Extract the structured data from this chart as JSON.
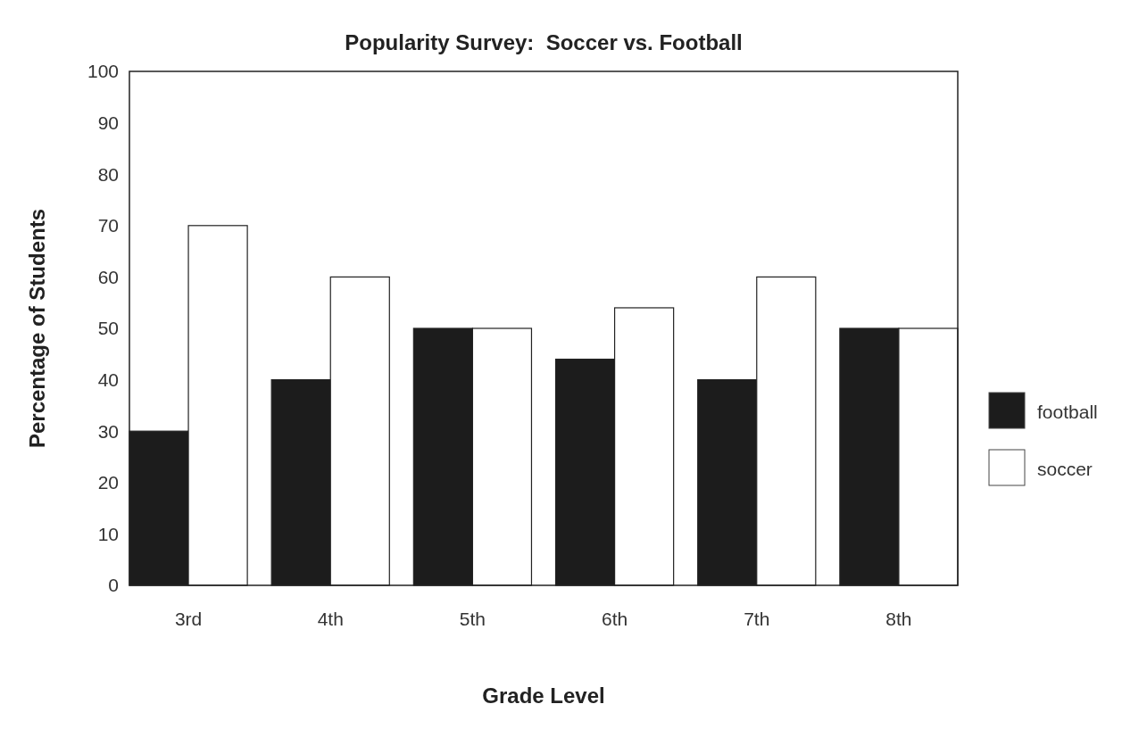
{
  "chart_data": {
    "type": "bar",
    "title": "Popularity Survey:  Soccer vs. Football",
    "xlabel": "Grade Level",
    "ylabel": "Percentage of Students",
    "categories": [
      "3rd",
      "4th",
      "5th",
      "6th",
      "7th",
      "8th"
    ],
    "series": [
      {
        "name": "football",
        "color": "#1c1c1c",
        "values": [
          30,
          40,
          50,
          44,
          40,
          50
        ]
      },
      {
        "name": "soccer",
        "color": "#ffffff",
        "values": [
          70,
          60,
          50,
          54,
          60,
          50
        ]
      }
    ],
    "ylim": [
      0,
      100
    ],
    "yticks": [
      0,
      10,
      20,
      30,
      40,
      50,
      60,
      70,
      80,
      90,
      100
    ],
    "grid": false,
    "legend": "right"
  }
}
